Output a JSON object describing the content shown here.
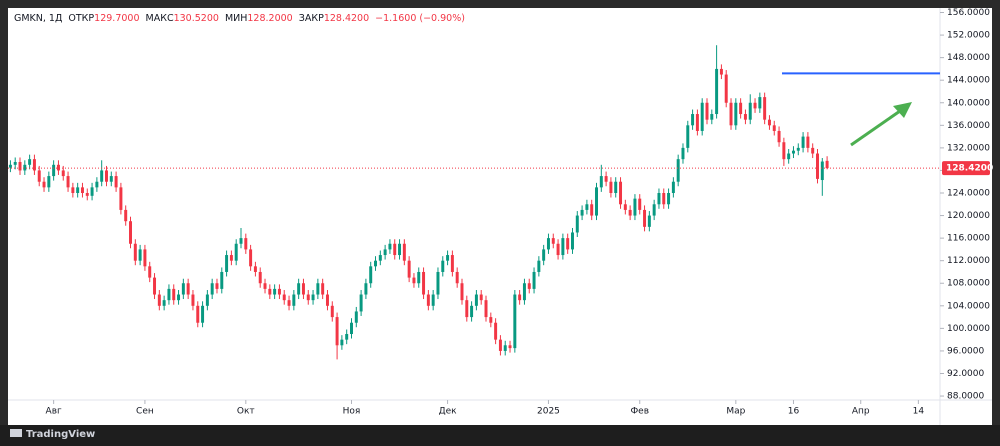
{
  "chart_data": {
    "type": "candlestick",
    "legend": {
      "symbol": "GMKN, 1Д",
      "items": [
        {
          "label": "ОТКР",
          "value": "129.7000"
        },
        {
          "label": "МАКС",
          "value": "130.5200"
        },
        {
          "label": "МИН",
          "value": "128.2000"
        },
        {
          "label": "ЗАКР",
          "value": "128.4200"
        }
      ],
      "change": "−1.1600 (−0.90%)"
    },
    "up_color": "#089981",
    "down_color": "#f23645",
    "open": [
      128.5,
      129,
      129.5,
      128,
      129,
      130,
      128,
      126,
      125,
      127,
      129,
      128,
      127,
      125,
      124,
      125,
      124,
      123.5,
      125,
      126,
      128,
      126,
      127,
      125,
      121,
      119,
      115,
      112,
      114,
      111,
      109,
      106,
      104,
      105,
      107,
      105,
      106,
      108,
      106,
      104,
      101,
      104,
      106,
      108,
      107,
      110,
      113,
      112,
      115,
      116,
      114,
      111,
      110,
      108,
      107,
      106,
      107,
      106,
      105,
      104,
      106,
      108,
      106,
      105,
      106,
      108,
      106,
      104,
      102,
      97,
      98,
      99,
      101,
      103,
      106,
      108,
      111,
      112,
      113,
      114,
      115,
      113,
      115,
      112,
      109,
      108,
      110,
      106,
      104,
      106,
      110,
      112,
      113,
      110,
      108,
      105,
      102,
      104,
      106,
      105,
      102,
      101,
      98,
      96,
      97,
      96.5,
      106,
      105,
      108,
      107,
      110,
      112,
      114,
      116,
      115,
      113,
      116,
      114,
      117,
      120,
      121,
      122,
      120,
      125,
      127,
      126,
      124,
      126,
      122,
      121,
      120,
      123,
      121,
      118,
      120,
      122,
      124,
      122,
      124,
      126,
      130,
      132,
      136,
      138,
      135,
      140,
      137,
      138,
      146,
      145,
      140,
      136,
      140,
      138,
      137,
      140,
      139,
      141,
      137,
      136,
      135,
      133,
      130,
      131,
      131.5,
      132,
      134,
      132,
      131,
      126.3,
      129.7
    ],
    "high": [
      129.8,
      130.3,
      130.3,
      129.8,
      130.8,
      130.8,
      128.8,
      126.8,
      127.8,
      129.8,
      129.8,
      128.8,
      127.8,
      125.8,
      125.8,
      125.8,
      124.8,
      125.8,
      126.8,
      129.8,
      128.8,
      127.8,
      127.8,
      125.8,
      121.8,
      119.8,
      115.8,
      114.8,
      114.8,
      111.8,
      109.8,
      106.8,
      105.8,
      107.8,
      107.8,
      106.8,
      108.8,
      108.8,
      106.8,
      104.8,
      104.8,
      106.8,
      108.8,
      108.8,
      110.8,
      113.8,
      113.8,
      115.8,
      117.8,
      116.8,
      114.8,
      111.8,
      110.8,
      108.8,
      107.8,
      107.8,
      107.8,
      106.8,
      105.8,
      106.8,
      108.8,
      108.8,
      106.8,
      106.8,
      108.8,
      108.8,
      106.8,
      104.8,
      102.8,
      98.8,
      99.8,
      101.8,
      103.8,
      106.8,
      108.8,
      111.8,
      112.8,
      113.8,
      114.8,
      115.8,
      115.8,
      115.8,
      115.8,
      112.8,
      109.8,
      110.8,
      110.8,
      106.8,
      106.8,
      110.8,
      112.8,
      113.8,
      113.8,
      110.8,
      108.8,
      105.8,
      104.8,
      106.8,
      106.8,
      105.8,
      102.8,
      101.8,
      98.8,
      97.8,
      97.8,
      106.8,
      106.8,
      108.8,
      108.8,
      110.8,
      112.8,
      114.8,
      116.8,
      116.8,
      115.8,
      116.8,
      116.8,
      117.8,
      120.8,
      121.8,
      122.8,
      122.8,
      125.8,
      129,
      127.8,
      126.8,
      126.8,
      126.8,
      122.8,
      121.8,
      123.8,
      123.8,
      121.8,
      120.8,
      122.8,
      124.8,
      124.8,
      124.8,
      126.8,
      130.8,
      132.8,
      136.8,
      138.8,
      138.8,
      140.8,
      140.8,
      138.8,
      150.2,
      146.8,
      145.8,
      140.8,
      140.8,
      140.8,
      138.8,
      141.5,
      140.8,
      141.8,
      141.8,
      137.8,
      136.8,
      135.8,
      133.8,
      131.8,
      132.3,
      132.8,
      134.8,
      134.8,
      132.8,
      131.8,
      130.2,
      130.52
    ],
    "low": [
      127.7,
      128.2,
      127.2,
      127.2,
      128.2,
      127.2,
      125.2,
      124.2,
      124.2,
      126.2,
      127.2,
      126.2,
      124.2,
      123.2,
      123.2,
      123.2,
      122.7,
      122.7,
      124.2,
      125.2,
      125.2,
      125.2,
      124.2,
      120.2,
      118.2,
      114.2,
      111.2,
      111.2,
      110.2,
      108.2,
      105.2,
      103.2,
      103.2,
      104.2,
      104.2,
      104.2,
      105.2,
      105.2,
      103.2,
      100.2,
      100.2,
      103.2,
      105.2,
      106.2,
      106.2,
      109.2,
      111.2,
      111.2,
      114.2,
      113.2,
      110.2,
      109.2,
      107.2,
      106.2,
      105.2,
      105.2,
      105.2,
      104.2,
      103.2,
      103.2,
      105.2,
      105.2,
      104.2,
      104.2,
      105.2,
      105.2,
      103.2,
      101.2,
      94.5,
      96.2,
      97.2,
      98.2,
      100.2,
      102.2,
      105.2,
      107.2,
      110.2,
      111.2,
      112.2,
      113.2,
      112.2,
      112.2,
      111.2,
      108.2,
      107.2,
      107.2,
      105.2,
      103.2,
      103.2,
      105.2,
      109.2,
      111.2,
      109.2,
      107.2,
      104.2,
      101.2,
      101.2,
      103.2,
      104.2,
      101.2,
      100.2,
      97.2,
      95.2,
      95.2,
      95.7,
      95.7,
      104.2,
      104.2,
      106.2,
      106.2,
      109.2,
      111.2,
      113.2,
      114.2,
      112.2,
      112.2,
      113.2,
      113.2,
      116.2,
      119.2,
      120.2,
      119.2,
      119.2,
      124.2,
      125.2,
      123.2,
      123.2,
      121.2,
      120.2,
      119.2,
      119.2,
      120.2,
      117.2,
      117.2,
      119.2,
      121.2,
      121.2,
      121.2,
      123.2,
      125.2,
      129.2,
      131.2,
      135.2,
      134.2,
      134.2,
      136.2,
      136.2,
      137.2,
      144.2,
      139.2,
      135.2,
      135.2,
      137.2,
      136.2,
      136.2,
      138.2,
      138.2,
      136.2,
      135.2,
      134.2,
      132.2,
      128.8,
      129.2,
      130.2,
      130.7,
      131.2,
      131.2,
      130.2,
      125.7,
      123.5,
      128.2
    ],
    "close": [
      129,
      129.5,
      128,
      129,
      130,
      128,
      126,
      125,
      127,
      129,
      128,
      127,
      125,
      124,
      125,
      124,
      123.5,
      125,
      126,
      128,
      126,
      127,
      125,
      121,
      119,
      115,
      112,
      114,
      111,
      109,
      106,
      104,
      105,
      107,
      105,
      106,
      108,
      106,
      104,
      101,
      104,
      106,
      108,
      107,
      110,
      113,
      112,
      115,
      116,
      114,
      111,
      110,
      108,
      107,
      106,
      107,
      106,
      105,
      104,
      106,
      108,
      106,
      105,
      106,
      108,
      106,
      104,
      102,
      97,
      98,
      99,
      101,
      103,
      106,
      108,
      111,
      112,
      113,
      114,
      115,
      113,
      115,
      112,
      109,
      108,
      110,
      106,
      104,
      106,
      110,
      112,
      113,
      110,
      108,
      105,
      102,
      104,
      106,
      105,
      102,
      101,
      98,
      96,
      97,
      96.5,
      106,
      105,
      108,
      107,
      110,
      112,
      114,
      116,
      115,
      113,
      116,
      114,
      117,
      120,
      121,
      122,
      120,
      125,
      127,
      126,
      124,
      126,
      122,
      121,
      120,
      123,
      121,
      118,
      120,
      122,
      124,
      122,
      124,
      126,
      130,
      132,
      136,
      138,
      135,
      140,
      137,
      138,
      146,
      145,
      140,
      136,
      140,
      138,
      137,
      140,
      139,
      141,
      137,
      136,
      135,
      133,
      130,
      131,
      131.5,
      132,
      134,
      132,
      131,
      126.5,
      129.58,
      128.42
    ],
    "last_value_label": "128.4200",
    "hline": 145.2,
    "hline_color": "#2962ff",
    "xlim": [
      -0.5,
      193.5
    ],
    "xticks": [
      {
        "value": 9,
        "label": "Авг"
      },
      {
        "value": 28,
        "label": "Сен"
      },
      {
        "value": 49,
        "label": "Окт"
      },
      {
        "value": 71,
        "label": "Ноя"
      },
      {
        "value": 91,
        "label": "Дек"
      },
      {
        "value": 112,
        "label": "2025"
      },
      {
        "value": 131,
        "label": "Фев"
      },
      {
        "value": 151,
        "label": "Мар"
      },
      {
        "value": 163,
        "label": "16"
      },
      {
        "value": 177,
        "label": "Апр"
      },
      {
        "value": 189,
        "label": "14"
      }
    ],
    "ylim": [
      87.3,
      156.8
    ],
    "yticks": [
      {
        "value": 88,
        "label": "88.0000"
      },
      {
        "value": 92,
        "label": "92.0000"
      },
      {
        "value": 96,
        "label": "96.0000"
      },
      {
        "value": 100,
        "label": "100.0000"
      },
      {
        "value": 104,
        "label": "104.0000"
      },
      {
        "value": 108,
        "label": "108.0000"
      },
      {
        "value": 112,
        "label": "112.0000"
      },
      {
        "value": 116,
        "label": "116.0000"
      },
      {
        "value": 120,
        "label": "120.0000"
      },
      {
        "value": 124,
        "label": "124.0000"
      },
      {
        "value": 128,
        "label": "128.0000"
      },
      {
        "value": 132,
        "label": "132.0000"
      },
      {
        "value": 136,
        "label": "136.0000"
      },
      {
        "value": 140,
        "label": "140.0000"
      },
      {
        "value": 144,
        "label": "144.0000"
      },
      {
        "value": 148,
        "label": "148.0000"
      },
      {
        "value": 152,
        "label": "152.0000"
      },
      {
        "value": 156,
        "label": "156.0000"
      }
    ],
    "grid": false
  },
  "footer": {
    "brand": "TradingView"
  }
}
